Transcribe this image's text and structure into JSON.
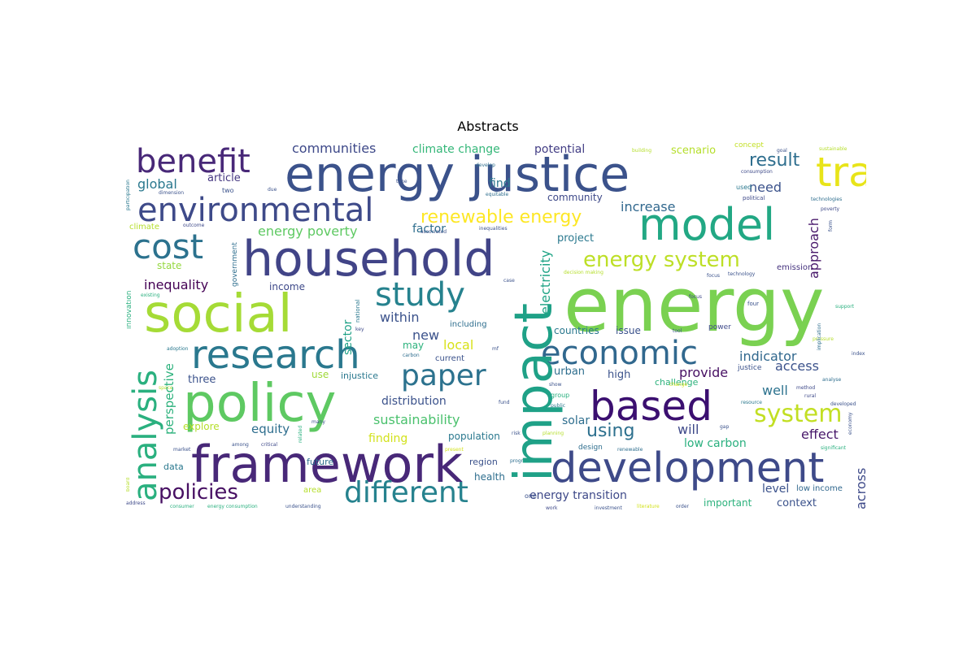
{
  "title": "Abstracts",
  "words": [
    {
      "text": "energy",
      "color": "#7ad151"
    },
    {
      "text": "energy justice",
      "color": "#3b528b"
    },
    {
      "text": "household",
      "color": "#414487"
    },
    {
      "text": "framework",
      "color": "#482878"
    },
    {
      "text": "policy",
      "color": "#5ec962"
    },
    {
      "text": "social",
      "color": "#a5db36"
    },
    {
      "text": "development",
      "color": "#3e4a89"
    },
    {
      "text": "model",
      "color": "#22a884"
    },
    {
      "text": "research",
      "color": "#2a788e"
    },
    {
      "text": "based",
      "color": "#3b0f70"
    },
    {
      "text": "impact",
      "color": "#1fa187"
    },
    {
      "text": "transition",
      "color": "#e8e419"
    },
    {
      "text": "environmental",
      "color": "#3e4a89"
    },
    {
      "text": "economic",
      "color": "#31688e"
    },
    {
      "text": "benefit",
      "color": "#482878"
    },
    {
      "text": "different",
      "color": "#26828e"
    },
    {
      "text": "analysis",
      "color": "#2ab07f"
    },
    {
      "text": "study",
      "color": "#26828e"
    },
    {
      "text": "cost",
      "color": "#2c728e"
    },
    {
      "text": "paper",
      "color": "#2c728e"
    },
    {
      "text": "system",
      "color": "#c2df23"
    },
    {
      "text": "policies",
      "color": "#471063"
    },
    {
      "text": "energy system",
      "color": "#bddf26"
    },
    {
      "text": "renewable energy",
      "color": "#fde725"
    },
    {
      "text": "result",
      "color": "#2e6e8e"
    },
    {
      "text": "using",
      "color": "#2d708e"
    },
    {
      "text": "communities",
      "color": "#3e4989"
    },
    {
      "text": "climate change",
      "color": "#35b779"
    },
    {
      "text": "potential",
      "color": "#433e85"
    },
    {
      "text": "scenario",
      "color": "#b5de2b"
    },
    {
      "text": "global",
      "color": "#2a788e"
    },
    {
      "text": "article",
      "color": "#453781"
    },
    {
      "text": "need",
      "color": "#3b528b"
    },
    {
      "text": "increase",
      "color": "#31688e"
    },
    {
      "text": "community",
      "color": "#3e4989"
    },
    {
      "text": "approach",
      "color": "#48186a"
    },
    {
      "text": "energy poverty",
      "color": "#5ec962"
    },
    {
      "text": "factor",
      "color": "#2e6e8e"
    },
    {
      "text": "project",
      "color": "#2a788e"
    },
    {
      "text": "electricity",
      "color": "#20a486"
    },
    {
      "text": "emission",
      "color": "#46337f"
    },
    {
      "text": "state",
      "color": "#95d840"
    },
    {
      "text": "inequality",
      "color": "#440154"
    },
    {
      "text": "income",
      "color": "#3e4989"
    },
    {
      "text": "sector",
      "color": "#1fa187"
    },
    {
      "text": "within",
      "color": "#3b528b"
    },
    {
      "text": "new",
      "color": "#3b528b"
    },
    {
      "text": "local",
      "color": "#d8e219"
    },
    {
      "text": "may",
      "color": "#2db27d"
    },
    {
      "text": "countries",
      "color": "#2a788e"
    },
    {
      "text": "issue",
      "color": "#3b528b"
    },
    {
      "text": "indicator",
      "color": "#31688e"
    },
    {
      "text": "access",
      "color": "#3b528b"
    },
    {
      "text": "provide",
      "color": "#471063"
    },
    {
      "text": "urban",
      "color": "#2e6e8e"
    },
    {
      "text": "high",
      "color": "#3b528b"
    },
    {
      "text": "three",
      "color": "#3b528b"
    },
    {
      "text": "use",
      "color": "#a0da39"
    },
    {
      "text": "injustice",
      "color": "#2a788e"
    },
    {
      "text": "perspective",
      "color": "#2db27d"
    },
    {
      "text": "explore",
      "color": "#b5de2b"
    },
    {
      "text": "equity",
      "color": "#2e6e8e"
    },
    {
      "text": "distribution",
      "color": "#3b528b"
    },
    {
      "text": "sustainability",
      "color": "#4ac16d"
    },
    {
      "text": "finding",
      "color": "#d2e21b"
    },
    {
      "text": "population",
      "color": "#2a788e"
    },
    {
      "text": "solar",
      "color": "#2e6e8e"
    },
    {
      "text": "well",
      "color": "#2c728e"
    },
    {
      "text": "effect",
      "color": "#48186a"
    },
    {
      "text": "will",
      "color": "#3e4989"
    },
    {
      "text": "low carbon",
      "color": "#2ab07f"
    },
    {
      "text": "region",
      "color": "#3b528b"
    },
    {
      "text": "health",
      "color": "#2e6e8e"
    },
    {
      "text": "future",
      "color": "#2e6e8e"
    },
    {
      "text": "data",
      "color": "#2a788e"
    },
    {
      "text": "area",
      "color": "#b5de2b"
    },
    {
      "text": "energy transition",
      "color": "#3e4989"
    },
    {
      "text": "level",
      "color": "#3b528b"
    },
    {
      "text": "across",
      "color": "#3e4a89"
    },
    {
      "text": "important",
      "color": "#2db27d"
    },
    {
      "text": "context",
      "color": "#3b528b"
    },
    {
      "text": "low income",
      "color": "#31688e"
    },
    {
      "text": "challenge",
      "color": "#2db27d"
    },
    {
      "text": "current",
      "color": "#3b528b"
    },
    {
      "text": "including",
      "color": "#2e6e8e"
    },
    {
      "text": "find",
      "color": "#2a788e"
    },
    {
      "text": "innovation",
      "color": "#2ab07f"
    },
    {
      "text": "government",
      "color": "#2e6e8e"
    },
    {
      "text": "climate",
      "color": "#b5de2b"
    },
    {
      "text": "concept",
      "color": "#c2df23"
    },
    {
      "text": "used",
      "color": "#2a788e"
    },
    {
      "text": "political",
      "color": "#3e4989"
    },
    {
      "text": "two",
      "color": "#3b528b"
    },
    {
      "text": "dimension",
      "color": "#3b528b"
    },
    {
      "text": "outcome",
      "color": "#3e4989"
    },
    {
      "text": "equitable",
      "color": "#2e6e8e"
    },
    {
      "text": "inequalities",
      "color": "#3b528b"
    },
    {
      "text": "associated",
      "color": "#3b528b"
    },
    {
      "text": "participation",
      "color": "#2a788e"
    },
    {
      "text": "existing",
      "color": "#2ab07f"
    },
    {
      "text": "key",
      "color": "#3e4989"
    },
    {
      "text": "national",
      "color": "#2a788e"
    },
    {
      "text": "case",
      "color": "#3b528b"
    },
    {
      "text": "decision making",
      "color": "#b5de2b"
    },
    {
      "text": "focus",
      "color": "#3b528b"
    },
    {
      "text": "technology",
      "color": "#3b528b"
    },
    {
      "text": "four",
      "color": "#3b528b"
    },
    {
      "text": "tool",
      "color": "#3b528b"
    },
    {
      "text": "power",
      "color": "#3e4989"
    },
    {
      "text": "implication",
      "color": "#2e6e8e"
    },
    {
      "text": "justice",
      "color": "#3b528b"
    },
    {
      "text": "method",
      "color": "#3e4989"
    },
    {
      "text": "analyse",
      "color": "#2e6e8e"
    },
    {
      "text": "rural",
      "color": "#3e4989"
    },
    {
      "text": "developed",
      "color": "#3b528b"
    },
    {
      "text": "resource",
      "color": "#2a788e"
    },
    {
      "text": "significant",
      "color": "#2ab07f"
    },
    {
      "text": "economy",
      "color": "#3b528b"
    },
    {
      "text": "gap",
      "color": "#3b528b"
    },
    {
      "text": "group",
      "color": "#2ab07f"
    },
    {
      "text": "show",
      "color": "#3b528b"
    },
    {
      "text": "public",
      "color": "#2a788e"
    },
    {
      "text": "planning",
      "color": "#b5de2b"
    },
    {
      "text": "design",
      "color": "#2e6e8e"
    },
    {
      "text": "renewable",
      "color": "#2e6e8e"
    },
    {
      "text": "investment",
      "color": "#3b528b"
    },
    {
      "text": "literature",
      "color": "#d2e21b"
    },
    {
      "text": "order",
      "color": "#3b528b"
    },
    {
      "text": "work",
      "color": "#3e4989"
    },
    {
      "text": "one",
      "color": "#3b528b"
    },
    {
      "text": "consumer",
      "color": "#2ab07f"
    },
    {
      "text": "energy consumption",
      "color": "#2ab07f"
    },
    {
      "text": "understanding",
      "color": "#3b528b"
    },
    {
      "text": "address",
      "color": "#3e4989"
    },
    {
      "text": "board",
      "color": "#b5de2b"
    },
    {
      "text": "among",
      "color": "#3b528b"
    },
    {
      "text": "critical",
      "color": "#3e4989"
    },
    {
      "text": "market",
      "color": "#3b528b"
    },
    {
      "text": "many",
      "color": "#3b528b"
    },
    {
      "text": "related",
      "color": "#2ab07f"
    },
    {
      "text": "carbon",
      "color": "#2e6e8e"
    },
    {
      "text": "present",
      "color": "#d2e21b"
    },
    {
      "text": "risk",
      "color": "#3b528b"
    },
    {
      "text": "program",
      "color": "#2e6e8e"
    },
    {
      "text": "focus",
      "color": "#3e4989"
    },
    {
      "text": "building",
      "color": "#b5de2b"
    },
    {
      "text": "goal",
      "color": "#3b528b"
    },
    {
      "text": "sustainable",
      "color": "#b5de2b"
    },
    {
      "text": "consumption",
      "color": "#3e4989"
    },
    {
      "text": "develop",
      "color": "#2e6e8e"
    },
    {
      "text": "due",
      "color": "#3b528b"
    },
    {
      "text": "time",
      "color": "#3b528b"
    },
    {
      "text": "poverty",
      "color": "#3e4989"
    },
    {
      "text": "technologies",
      "color": "#2e6e8e"
    },
    {
      "text": "form",
      "color": "#3b528b"
    },
    {
      "text": "pressure",
      "color": "#b5de2b"
    },
    {
      "text": "support",
      "color": "#2ab07f"
    },
    {
      "text": "change",
      "color": "#d2e21b"
    },
    {
      "text": "index",
      "color": "#3b528b"
    },
    {
      "text": "space",
      "color": "#b5de2b"
    },
    {
      "text": "adoption",
      "color": "#2a788e"
    },
    {
      "text": "mf",
      "color": "#3b528b"
    },
    {
      "text": "fund",
      "color": "#3b528b"
    }
  ]
}
